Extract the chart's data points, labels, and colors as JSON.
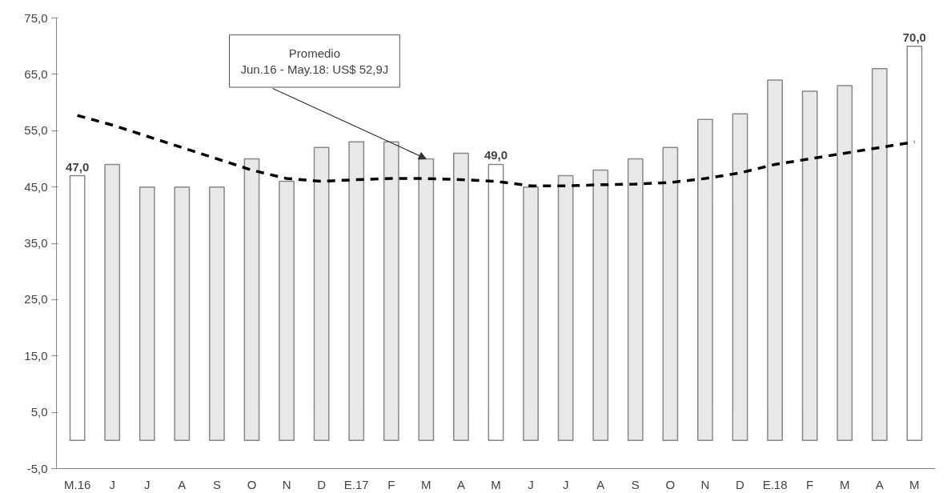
{
  "chart_data": {
    "type": "bar",
    "categories": [
      "M.16",
      "J",
      "J",
      "A",
      "S",
      "O",
      "N",
      "D",
      "E.17",
      "F",
      "M",
      "A",
      "M",
      "J",
      "J",
      "A",
      "S",
      "O",
      "N",
      "D",
      "E.18",
      "F",
      "M",
      "A",
      "M"
    ],
    "values": [
      47,
      49,
      45,
      45,
      45,
      50,
      46,
      52,
      53,
      53,
      50,
      51,
      49,
      45,
      47,
      48,
      50,
      52,
      57,
      58,
      64,
      62,
      63,
      66,
      70
    ],
    "colors": [
      "#ffffff",
      "#e8e8e8",
      "#e8e8e8",
      "#e8e8e8",
      "#e8e8e8",
      "#e8e8e8",
      "#e8e8e8",
      "#e8e8e8",
      "#e8e8e8",
      "#e8e8e8",
      "#e8e8e8",
      "#e8e8e8",
      "#ffffff",
      "#e8e8e8",
      "#e8e8e8",
      "#e8e8e8",
      "#e8e8e8",
      "#e8e8e8",
      "#e8e8e8",
      "#e8e8e8",
      "#e8e8e8",
      "#e8e8e8",
      "#e8e8e8",
      "#e8e8e8",
      "#ffffff"
    ],
    "value_labels": [
      "47,0",
      null,
      null,
      null,
      null,
      null,
      null,
      null,
      null,
      null,
      null,
      null,
      "49,0",
      null,
      null,
      null,
      null,
      null,
      null,
      null,
      null,
      null,
      null,
      null,
      "70,0"
    ],
    "series": [
      {
        "type": "line",
        "color": "#000000",
        "line_style": "dashed",
        "values": [
          57.7,
          56,
          54,
          52,
          50,
          48,
          46.5,
          46,
          46.3,
          46.5,
          46.5,
          46.3,
          46,
          45.2,
          45.2,
          45.4,
          45.5,
          45.8,
          46.5,
          47.5,
          49,
          50,
          51,
          52,
          53
        ]
      }
    ],
    "ylim": [
      -5,
      75
    ],
    "yticks": [
      {
        "value": -5,
        "label": "-5,0"
      },
      {
        "value": 5,
        "label": "5,0"
      },
      {
        "value": 15,
        "label": "15,0"
      },
      {
        "value": 25,
        "label": "25,0"
      },
      {
        "value": 35,
        "label": "35,0"
      },
      {
        "value": 45,
        "label": "45,0"
      },
      {
        "value": 55,
        "label": "55,0"
      },
      {
        "value": 65,
        "label": "65,0"
      },
      {
        "value": 75,
        "label": "75,0"
      }
    ],
    "annotations": [
      {
        "text": "Promedio\nJun.16 - May.18: US$ 52,9J",
        "x": "M",
        "y": 50
      }
    ],
    "grid": false
  }
}
